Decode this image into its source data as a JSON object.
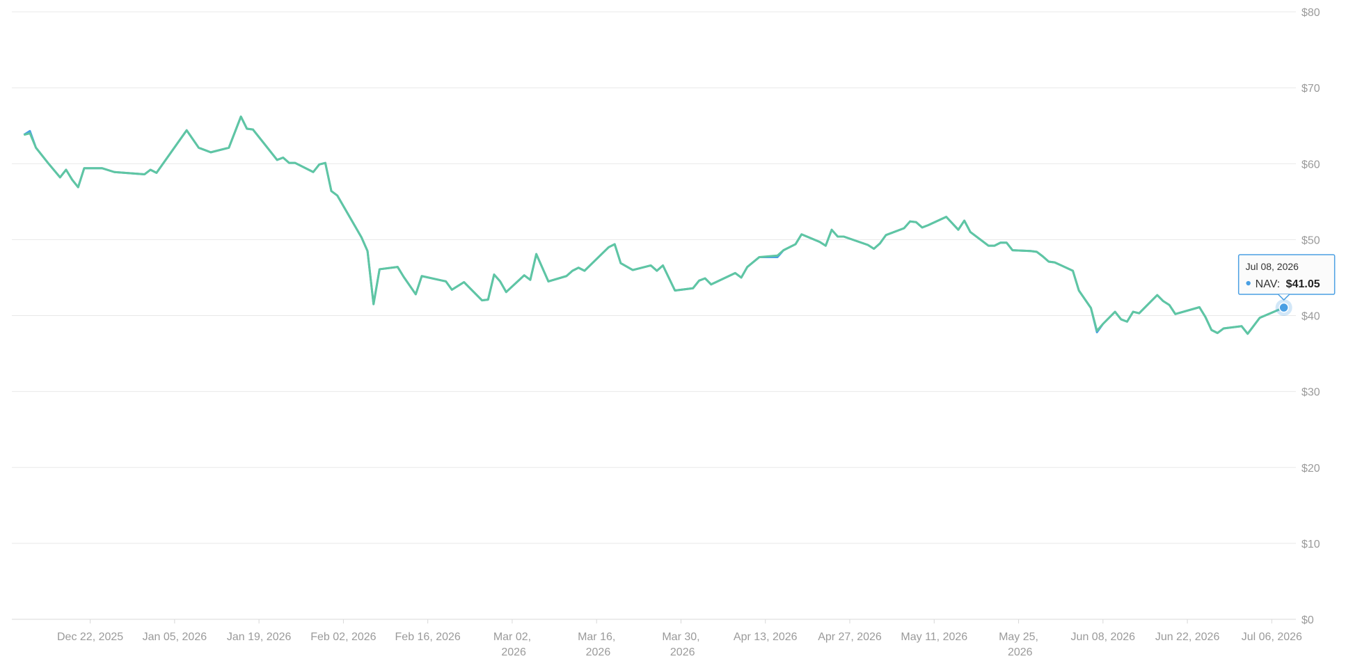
{
  "chart_data": {
    "type": "line",
    "x": [
      "2025-12-11",
      "2025-12-12",
      "2025-12-13",
      "2025-12-15",
      "2025-12-17",
      "2025-12-18",
      "2025-12-19",
      "2025-12-20",
      "2025-12-21",
      "2025-12-24",
      "2025-12-26",
      "2025-12-31",
      "2026-01-01",
      "2026-01-02",
      "2026-01-07",
      "2026-01-09",
      "2026-01-11",
      "2026-01-14",
      "2026-01-16",
      "2026-01-17",
      "2026-01-18",
      "2026-01-22",
      "2026-01-23",
      "2026-01-24",
      "2026-01-25",
      "2026-01-28",
      "2026-01-29",
      "2026-01-30",
      "2026-01-31",
      "2026-02-01",
      "2026-02-05",
      "2026-02-06",
      "2026-02-07",
      "2026-02-08",
      "2026-02-11",
      "2026-02-12",
      "2026-02-14",
      "2026-02-15",
      "2026-02-19",
      "2026-02-20",
      "2026-02-22",
      "2026-02-25",
      "2026-02-26",
      "2026-02-27",
      "2026-02-28",
      "2026-03-01",
      "2026-03-04",
      "2026-03-05",
      "2026-03-06",
      "2026-03-08",
      "2026-03-11",
      "2026-03-12",
      "2026-03-13",
      "2026-03-14",
      "2026-03-18",
      "2026-03-19",
      "2026-03-20",
      "2026-03-22",
      "2026-03-25",
      "2026-03-26",
      "2026-03-27",
      "2026-03-29",
      "2026-04-01",
      "2026-04-02",
      "2026-04-03",
      "2026-04-04",
      "2026-04-08",
      "2026-04-09",
      "2026-04-10",
      "2026-04-12",
      "2026-04-15",
      "2026-04-16",
      "2026-04-18",
      "2026-04-19",
      "2026-04-22",
      "2026-04-23",
      "2026-04-24",
      "2026-04-25",
      "2026-04-26",
      "2026-04-30",
      "2026-05-01",
      "2026-05-02",
      "2026-05-03",
      "2026-05-06",
      "2026-05-07",
      "2026-05-08",
      "2026-05-09",
      "2026-05-10",
      "2026-05-13",
      "2026-05-15",
      "2026-05-16",
      "2026-05-17",
      "2026-05-20",
      "2026-05-21",
      "2026-05-22",
      "2026-05-23",
      "2026-05-24",
      "2026-05-27",
      "2026-05-28",
      "2026-05-29",
      "2026-05-30",
      "2026-05-31",
      "2026-06-03",
      "2026-06-04",
      "2026-06-06",
      "2026-06-07",
      "2026-06-08",
      "2026-06-10",
      "2026-06-11",
      "2026-06-12",
      "2026-06-13",
      "2026-06-14",
      "2026-06-17",
      "2026-06-18",
      "2026-06-19",
      "2026-06-20",
      "2026-06-24",
      "2026-06-25",
      "2026-06-26",
      "2026-06-27",
      "2026-06-28",
      "2026-07-01",
      "2026-07-02",
      "2026-07-04",
      "2026-07-08"
    ],
    "series": [
      {
        "name": "NAV",
        "color": "#4a9fe3",
        "values": [
          63.8,
          64.3,
          62.1,
          60.1,
          58.2,
          59.2,
          57.9,
          56.9,
          59.4,
          59.4,
          58.9,
          58.6,
          59.2,
          58.8,
          64.4,
          62.1,
          61.5,
          62.1,
          66.2,
          64.6,
          64.5,
          60.5,
          60.8,
          60.1,
          60.1,
          58.9,
          59.9,
          60.1,
          56.4,
          55.8,
          50.3,
          48.5,
          41.5,
          46.1,
          46.4,
          45.1,
          42.8,
          45.2,
          44.5,
          43.4,
          44.4,
          42.0,
          42.1,
          45.4,
          44.5,
          43.1,
          45.3,
          44.7,
          48.1,
          44.5,
          45.2,
          45.9,
          46.3,
          45.9,
          49.0,
          49.4,
          46.9,
          46.0,
          46.6,
          45.9,
          46.6,
          43.3,
          43.6,
          44.6,
          44.9,
          44.1,
          45.6,
          45.0,
          46.4,
          47.7,
          47.7,
          48.6,
          49.4,
          50.7,
          49.7,
          49.2,
          51.3,
          50.4,
          50.4,
          49.3,
          48.8,
          49.5,
          50.6,
          51.5,
          52.4,
          52.3,
          51.6,
          51.9,
          53.0,
          51.3,
          52.5,
          51.0,
          49.2,
          49.2,
          49.6,
          49.6,
          48.6,
          48.5,
          48.4,
          47.8,
          47.1,
          47.0,
          45.9,
          43.3,
          41.0,
          37.8,
          38.9,
          40.5,
          39.5,
          39.2,
          40.5,
          40.3,
          42.7,
          41.9,
          41.4,
          40.2,
          41.1,
          39.8,
          38.1,
          37.7,
          38.3,
          38.6,
          37.6,
          39.7,
          41.05
        ]
      },
      {
        "color": "#5fc6a2",
        "values": [
          63.8,
          64.0,
          62.1,
          60.1,
          58.2,
          59.2,
          57.9,
          56.9,
          59.4,
          59.4,
          58.9,
          58.6,
          59.2,
          58.8,
          64.4,
          62.1,
          61.5,
          62.1,
          66.2,
          64.6,
          64.5,
          60.5,
          60.8,
          60.1,
          60.1,
          58.9,
          59.9,
          60.1,
          56.4,
          55.8,
          50.3,
          48.5,
          41.5,
          46.1,
          46.4,
          45.1,
          42.8,
          45.2,
          44.5,
          43.4,
          44.4,
          42.0,
          42.1,
          45.4,
          44.5,
          43.1,
          45.3,
          44.7,
          48.1,
          44.5,
          45.2,
          45.9,
          46.3,
          45.9,
          49.0,
          49.4,
          46.9,
          46.0,
          46.6,
          45.9,
          46.6,
          43.3,
          43.6,
          44.6,
          44.9,
          44.1,
          45.6,
          45.0,
          46.4,
          47.7,
          47.9,
          48.6,
          49.4,
          50.7,
          49.7,
          49.2,
          51.3,
          50.4,
          50.4,
          49.3,
          48.8,
          49.5,
          50.6,
          51.5,
          52.4,
          52.3,
          51.6,
          51.9,
          53.0,
          51.3,
          52.5,
          51.0,
          49.2,
          49.2,
          49.6,
          49.6,
          48.6,
          48.5,
          48.4,
          47.8,
          47.1,
          47.0,
          45.9,
          43.3,
          41.0,
          38.0,
          38.9,
          40.5,
          39.5,
          39.2,
          40.5,
          40.3,
          42.7,
          41.9,
          41.4,
          40.2,
          41.1,
          39.8,
          38.1,
          37.7,
          38.3,
          38.6,
          37.6,
          39.7,
          41.05
        ]
      }
    ],
    "xlim": [
      "2025-12-09",
      "2026-07-10"
    ],
    "xticks": [
      {
        "value": "2025-12-22",
        "label": "Dec 22, 2025"
      },
      {
        "value": "2026-01-05",
        "label": "Jan 05, 2026"
      },
      {
        "value": "2026-01-19",
        "label": "Jan 19, 2026"
      },
      {
        "value": "2026-02-02",
        "label": "Feb 02, 2026"
      },
      {
        "value": "2026-02-16",
        "label": "Feb 16, 2026"
      },
      {
        "value": "2026-03-02",
        "label": "Mar 02, 2026"
      },
      {
        "value": "2026-03-16",
        "label": "Mar 16, 2026"
      },
      {
        "value": "2026-03-30",
        "label": "Mar 30, 2026"
      },
      {
        "value": "2026-04-13",
        "label": "Apr 13, 2026"
      },
      {
        "value": "2026-04-27",
        "label": "Apr 27, 2026"
      },
      {
        "value": "2026-05-11",
        "label": "May 11, 2026"
      },
      {
        "value": "2026-05-25",
        "label": "May 25, 2026"
      },
      {
        "value": "2026-06-08",
        "label": "Jun 08, 2026"
      },
      {
        "value": "2026-06-22",
        "label": "Jun 22, 2026"
      },
      {
        "value": "2026-07-06",
        "label": "Jul 06, 2026"
      }
    ],
    "ylim": [
      0,
      80
    ],
    "yticks": [
      {
        "value": 0,
        "label": "$0"
      },
      {
        "value": 10,
        "label": "$10"
      },
      {
        "value": 20,
        "label": "$20"
      },
      {
        "value": 30,
        "label": "$30"
      },
      {
        "value": 40,
        "label": "$40"
      },
      {
        "value": 50,
        "label": "$50"
      },
      {
        "value": 60,
        "label": "$60"
      },
      {
        "value": 70,
        "label": "$70"
      },
      {
        "value": 80,
        "label": "$80"
      }
    ],
    "y_axis_side": "right",
    "grid": true,
    "tooltip": {
      "title": "Jul 08, 2026",
      "label": "NAV:",
      "value": 41.05,
      "value_label": "$41.05"
    }
  }
}
